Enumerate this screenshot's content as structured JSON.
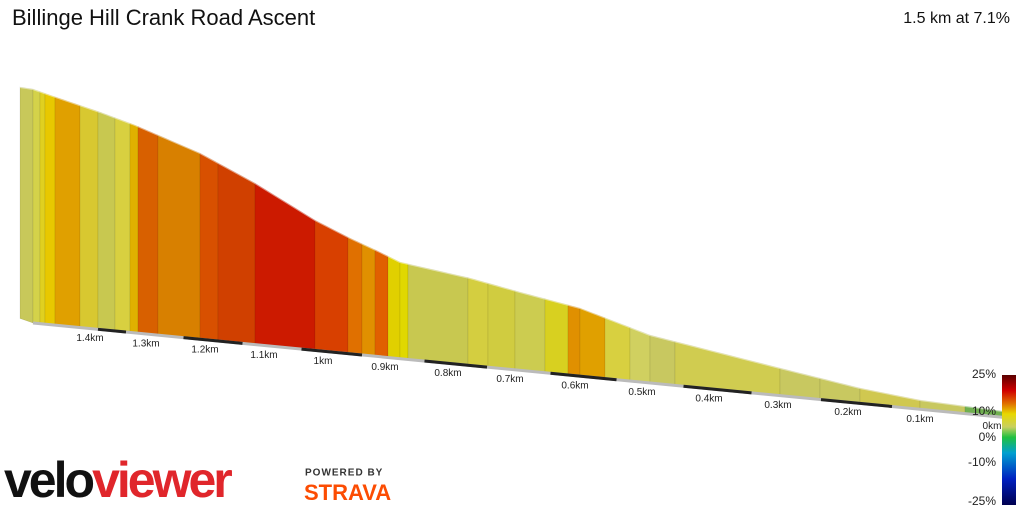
{
  "header": {
    "title": "Billinge Hill Crank Road Ascent",
    "summary": "1.5 km at 7.1%"
  },
  "distance_labels": [
    "1.4km",
    "1.3km",
    "1.2km",
    "1.1km",
    "1km",
    "0.9km",
    "0.8km",
    "0.7km",
    "0.6km",
    "0.5km",
    "0.4km",
    "0.3km",
    "0.2km",
    "0.1km",
    "0km"
  ],
  "gradient_legend": [
    "25%",
    "10%",
    "0%",
    "-10%",
    "-25%"
  ],
  "logo": {
    "velo": "velo",
    "viewer": "viewer",
    "powered_by": "POWERED BY",
    "strava": "STRAVA"
  }
}
